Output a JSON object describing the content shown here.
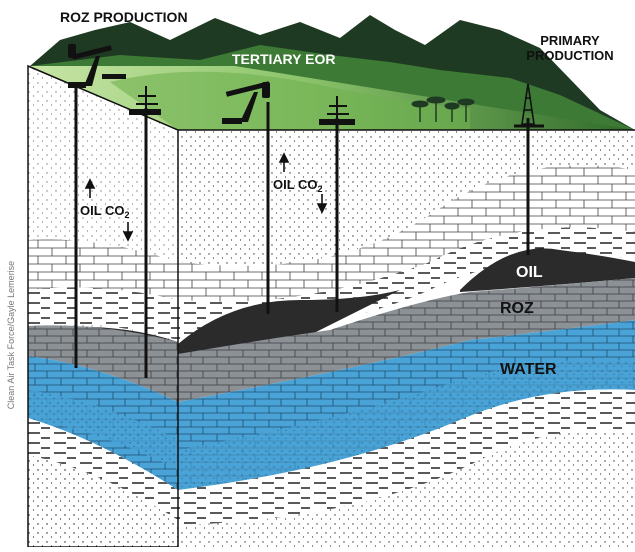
{
  "labels": {
    "roz_production": "ROZ PRODUCTION",
    "tertiary_eor": "TERTIARY EOR",
    "primary_production_line1": "PRIMARY",
    "primary_production_line2": "PRODUCTION",
    "oil_co2_left": "OIL CO",
    "oil_co2_mid": "OIL CO",
    "co2_subscript": "2",
    "layer_oil": "OIL",
    "layer_roz": "ROZ",
    "layer_water": "WATER"
  },
  "credit": "Clean Air Task Force/Gayle Lemerise",
  "colors": {
    "hills_dark": "#1f3a22",
    "hills_green": "#3d7a35",
    "grass_light": "#a8d38a",
    "oil_layer": "#2b2b2b",
    "roz_layer": "#8c9196",
    "water_layer": "#4aa3d6",
    "rock_white": "#ffffff",
    "sand": "#f4f4f4"
  },
  "icons": [
    "pumpjack-icon",
    "wellhead-icon",
    "palm-trees-icon",
    "derrick-icon",
    "arrow-up-icon",
    "arrow-down-icon"
  ]
}
